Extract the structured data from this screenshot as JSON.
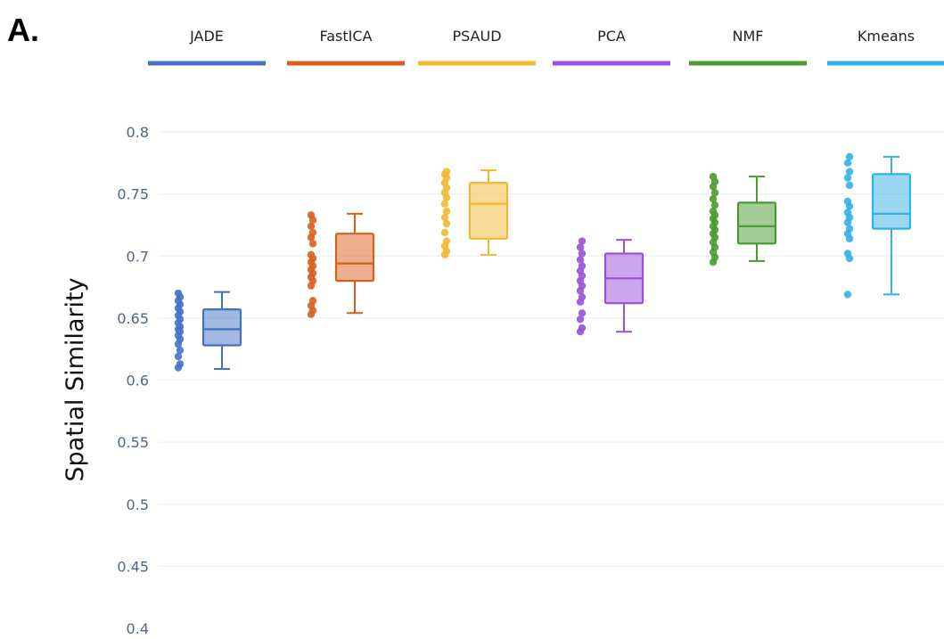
{
  "panel_label": "A.",
  "chart_data": {
    "type": "box",
    "ylabel": "Spatial Similarity",
    "xlabel": "",
    "ylim": [
      0.4,
      0.8
    ],
    "yticks": [
      0.4,
      0.45,
      0.5,
      0.55,
      0.6,
      0.65,
      0.7,
      0.75,
      0.8
    ],
    "ytick_labels": [
      "0.4",
      "0.45",
      "0.5",
      "0.55",
      "0.6",
      "0.65",
      "0.7",
      "0.75",
      "0.8"
    ],
    "grid": true,
    "legend_position": "top",
    "series": [
      {
        "name": "JADE",
        "color": "#4472c4",
        "min": 0.609,
        "q1": 0.628,
        "median": 0.641,
        "q3": 0.657,
        "max": 0.671,
        "points": [
          0.61,
          0.613,
          0.619,
          0.624,
          0.629,
          0.633,
          0.636,
          0.639,
          0.641,
          0.643,
          0.646,
          0.649,
          0.652,
          0.655,
          0.658,
          0.661,
          0.664,
          0.667,
          0.67
        ]
      },
      {
        "name": "FastICA",
        "color": "#d95f1e",
        "min": 0.654,
        "q1": 0.68,
        "median": 0.694,
        "q3": 0.718,
        "max": 0.734,
        "points": [
          0.653,
          0.656,
          0.66,
          0.664,
          0.676,
          0.68,
          0.683,
          0.686,
          0.689,
          0.692,
          0.695,
          0.698,
          0.701,
          0.71,
          0.715,
          0.719,
          0.724,
          0.729,
          0.733
        ]
      },
      {
        "name": "PSAUD",
        "color": "#f2b830",
        "min": 0.701,
        "q1": 0.714,
        "median": 0.742,
        "q3": 0.759,
        "max": 0.769,
        "points": [
          0.701,
          0.704,
          0.708,
          0.712,
          0.719,
          0.726,
          0.731,
          0.736,
          0.742,
          0.747,
          0.751,
          0.755,
          0.759,
          0.763,
          0.766,
          0.768
        ]
      },
      {
        "name": "PCA",
        "color": "#9b4fdc",
        "min": 0.639,
        "q1": 0.662,
        "median": 0.682,
        "q3": 0.702,
        "max": 0.713,
        "points": [
          0.639,
          0.642,
          0.649,
          0.654,
          0.663,
          0.667,
          0.672,
          0.676,
          0.68,
          0.684,
          0.688,
          0.692,
          0.697,
          0.702,
          0.707,
          0.712
        ]
      },
      {
        "name": "NMF",
        "color": "#4a9a30",
        "min": 0.696,
        "q1": 0.71,
        "median": 0.724,
        "q3": 0.743,
        "max": 0.764,
        "points": [
          0.695,
          0.699,
          0.703,
          0.707,
          0.711,
          0.715,
          0.718,
          0.721,
          0.724,
          0.727,
          0.73,
          0.733,
          0.736,
          0.741,
          0.746,
          0.751,
          0.756,
          0.76,
          0.764
        ]
      },
      {
        "name": "Kmeans",
        "color": "#33b0e8",
        "min": 0.669,
        "q1": 0.722,
        "median": 0.734,
        "q3": 0.766,
        "max": 0.78,
        "points": [
          0.669,
          0.698,
          0.702,
          0.714,
          0.718,
          0.722,
          0.727,
          0.731,
          0.735,
          0.74,
          0.744,
          0.757,
          0.763,
          0.768,
          0.775,
          0.78
        ]
      }
    ]
  }
}
